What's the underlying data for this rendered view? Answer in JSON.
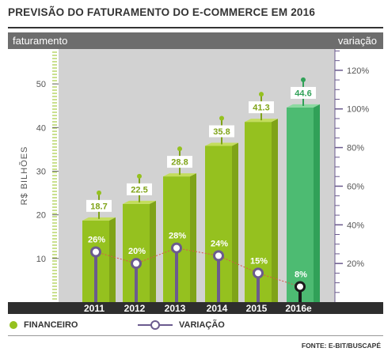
{
  "title": "PREVISÃO DO FATURAMENTO DO E-COMMERCE EM 2016",
  "legend": {
    "financeiro": "FINANCEIRO",
    "variacao": "VARIAÇÃO"
  },
  "source": "FONTE: E-BIT/BUSCAPÉ",
  "colors": {
    "bar_front": "#95c11f",
    "bar_side": "#7fa318",
    "bar_top": "#c3dd5c",
    "bar_highlight_front": "#4dbb72",
    "bar_highlight_side": "#31a158",
    "bar_highlight_top": "#8bd9a0",
    "line": "#6b5b8e",
    "trend": "#d9574a",
    "plot_bg": "#d2d2d2",
    "header_bg": "#6d6d6d",
    "axis_bg": "#2e2e2e"
  },
  "chart_data": {
    "type": "bar",
    "title": "PREVISÃO DO FATURAMENTO DO E-COMMERCE EM 2016",
    "header_left": "faturamento",
    "header_right": "variação",
    "ylabel": "R$ BILHÕES",
    "y2label": "",
    "categories": [
      "2011",
      "2012",
      "2013",
      "2014",
      "2015",
      "2016e"
    ],
    "yticks": [
      "10",
      "20",
      "30",
      "40",
      "50"
    ],
    "y2ticks": [
      "20%",
      "40%",
      "60%",
      "80%",
      "100%",
      "120%"
    ],
    "ylim": [
      0,
      58
    ],
    "y2lim": [
      0,
      131
    ],
    "highlight_index": 5,
    "series": [
      {
        "name": "FINANCEIRO",
        "type": "bar",
        "values": [
          18.7,
          22.5,
          28.8,
          35.8,
          41.3,
          44.6
        ],
        "labels": [
          "18.7",
          "22.5",
          "28.8",
          "35.8",
          "41.3",
          "44.6"
        ]
      },
      {
        "name": "VARIAÇÃO",
        "type": "line",
        "values": [
          26,
          20,
          28,
          24,
          15,
          8
        ],
        "labels": [
          "26%",
          "20%",
          "28%",
          "24%",
          "15%",
          "8%"
        ]
      }
    ],
    "grid": false,
    "legend_position": "bottom"
  }
}
